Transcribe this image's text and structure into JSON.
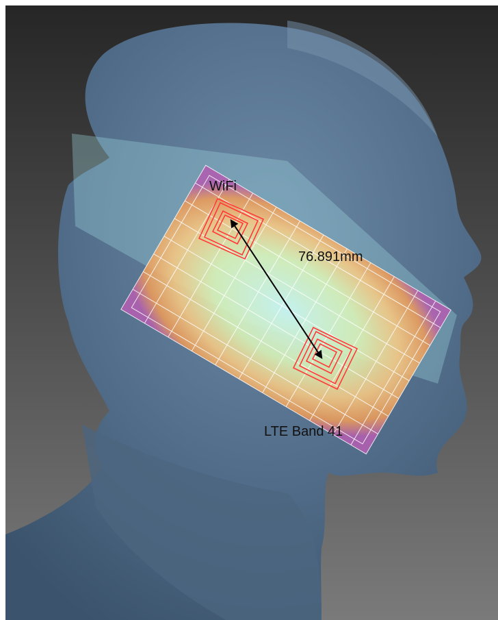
{
  "labels": {
    "antenna_1": "WiFi",
    "distance": "76.891mm",
    "antenna_2": "LTE Band 41"
  },
  "colors": {
    "background_dark": "#2a2a2a",
    "background_light": "#777777",
    "head": "#55708c",
    "coil": "#ff3a3a",
    "arrow": "#000000"
  }
}
